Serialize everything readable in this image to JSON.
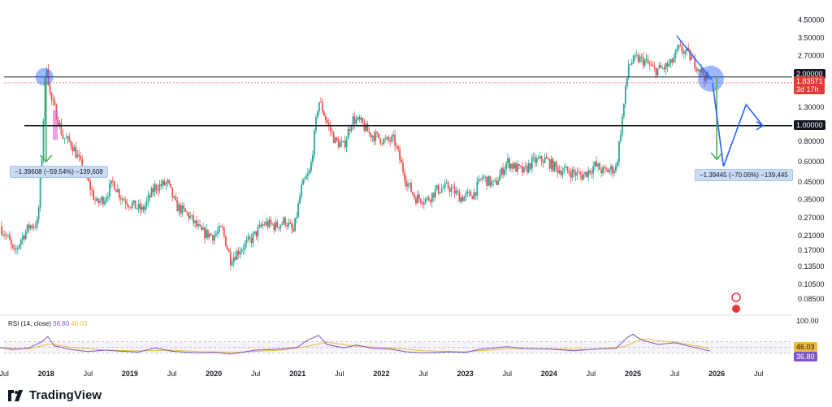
{
  "brand": {
    "name": "TradingView",
    "logo_icon": "tradingview-logo-icon"
  },
  "rsi": {
    "title": "RSI (14, close)",
    "value_rsi": "36.80",
    "value_ma": "46.03",
    "upper": "100.00",
    "rsi_color": "#7e57c2",
    "ma_color": "#f0b93a"
  },
  "price_tags": {
    "level_2": "2.00000",
    "current": "1.83571",
    "countdown": "3d 17h",
    "level_1": "1.00000"
  },
  "measure_left": "−1.39608 (−59.54%) −139,608",
  "measure_right": "−1.39445 (−70.06%) −139,445",
  "colors": {
    "up": "#26a69a",
    "down": "#ef5350",
    "projection": "#2962ff",
    "circle": "#2962ff"
  },
  "chart_data": {
    "type": "candlestick",
    "scale": "log",
    "ylim": [
      0.07,
      5.2
    ],
    "y_ticks": [
      "4.50000",
      "3.50000",
      "2.70000",
      "2.00000",
      "1.30000",
      "1.00000",
      "0.80000",
      "0.60000",
      "0.45000",
      "0.35000",
      "0.27000",
      "0.21000",
      "0.17000",
      "0.13500",
      "0.10500",
      "0.08500"
    ],
    "y_tick_values": [
      4.5,
      3.5,
      2.7,
      2.0,
      1.3,
      1.0,
      0.8,
      0.6,
      0.45,
      0.35,
      0.27,
      0.21,
      0.17,
      0.135,
      0.105,
      0.085
    ],
    "x_ticks": [
      {
        "label": "Jul",
        "t": 2017.5,
        "year": false
      },
      {
        "label": "2018",
        "t": 2018.0,
        "year": true
      },
      {
        "label": "Jul",
        "t": 2018.5,
        "year": false
      },
      {
        "label": "2019",
        "t": 2019.0,
        "year": true
      },
      {
        "label": "Jul",
        "t": 2019.5,
        "year": false
      },
      {
        "label": "2020",
        "t": 2020.0,
        "year": true
      },
      {
        "label": "Jul",
        "t": 2020.5,
        "year": false
      },
      {
        "label": "2021",
        "t": 2021.0,
        "year": true
      },
      {
        "label": "Jul",
        "t": 2021.5,
        "year": false
      },
      {
        "label": "2022",
        "t": 2022.0,
        "year": true
      },
      {
        "label": "Jul",
        "t": 2022.5,
        "year": false
      },
      {
        "label": "2023",
        "t": 2023.0,
        "year": true
      },
      {
        "label": "Jul",
        "t": 2023.5,
        "year": false
      },
      {
        "label": "2024",
        "t": 2024.0,
        "year": true
      },
      {
        "label": "Jul",
        "t": 2024.5,
        "year": false
      },
      {
        "label": "2025",
        "t": 2025.0,
        "year": true
      },
      {
        "label": "Jul",
        "t": 2025.5,
        "year": false
      },
      {
        "label": "2026",
        "t": 2026.0,
        "year": true
      },
      {
        "label": "Jul",
        "t": 2026.5,
        "year": false
      }
    ],
    "xlim": [
      2017.45,
      2026.9
    ],
    "horizontal_levels": [
      2.0,
      1.0
    ],
    "price_path": [
      [
        2017.45,
        0.24
      ],
      [
        2017.55,
        0.2
      ],
      [
        2017.62,
        0.16
      ],
      [
        2017.7,
        0.2
      ],
      [
        2017.8,
        0.24
      ],
      [
        2017.9,
        0.25
      ],
      [
        2017.95,
        0.65
      ],
      [
        2018.0,
        2.6
      ],
      [
        2018.05,
        1.5
      ],
      [
        2018.12,
        1.2
      ],
      [
        2018.2,
        0.85
      ],
      [
        2018.3,
        0.78
      ],
      [
        2018.4,
        0.6
      ],
      [
        2018.5,
        0.45
      ],
      [
        2018.6,
        0.33
      ],
      [
        2018.7,
        0.36
      ],
      [
        2018.8,
        0.45
      ],
      [
        2018.9,
        0.36
      ],
      [
        2019.0,
        0.33
      ],
      [
        2019.15,
        0.3
      ],
      [
        2019.3,
        0.42
      ],
      [
        2019.45,
        0.44
      ],
      [
        2019.55,
        0.32
      ],
      [
        2019.7,
        0.28
      ],
      [
        2019.85,
        0.22
      ],
      [
        2020.0,
        0.21
      ],
      [
        2020.1,
        0.23
      ],
      [
        2020.2,
        0.15
      ],
      [
        2020.3,
        0.17
      ],
      [
        2020.45,
        0.2
      ],
      [
        2020.6,
        0.25
      ],
      [
        2020.75,
        0.24
      ],
      [
        2020.85,
        0.26
      ],
      [
        2020.95,
        0.22
      ],
      [
        2021.05,
        0.42
      ],
      [
        2021.15,
        0.52
      ],
      [
        2021.25,
        1.45
      ],
      [
        2021.3,
        1.25
      ],
      [
        2021.35,
        1.05
      ],
      [
        2021.45,
        0.8
      ],
      [
        2021.55,
        0.75
      ],
      [
        2021.65,
        1.1
      ],
      [
        2021.75,
        1.05
      ],
      [
        2021.85,
        0.9
      ],
      [
        2021.95,
        0.85
      ],
      [
        2022.05,
        0.8
      ],
      [
        2022.15,
        0.82
      ],
      [
        2022.3,
        0.45
      ],
      [
        2022.4,
        0.36
      ],
      [
        2022.55,
        0.35
      ],
      [
        2022.65,
        0.4
      ],
      [
        2022.8,
        0.42
      ],
      [
        2022.95,
        0.36
      ],
      [
        2023.1,
        0.38
      ],
      [
        2023.2,
        0.48
      ],
      [
        2023.35,
        0.43
      ],
      [
        2023.5,
        0.6
      ],
      [
        2023.6,
        0.55
      ],
      [
        2023.7,
        0.52
      ],
      [
        2023.8,
        0.6
      ],
      [
        2023.95,
        0.62
      ],
      [
        2024.1,
        0.54
      ],
      [
        2024.25,
        0.52
      ],
      [
        2024.4,
        0.49
      ],
      [
        2024.55,
        0.57
      ],
      [
        2024.65,
        0.52
      ],
      [
        2024.8,
        0.55
      ],
      [
        2024.88,
        1.2
      ],
      [
        2024.95,
        2.4
      ],
      [
        2025.05,
        2.6
      ],
      [
        2025.15,
        2.5
      ],
      [
        2025.25,
        2.2
      ],
      [
        2025.35,
        2.25
      ],
      [
        2025.45,
        2.4
      ],
      [
        2025.55,
        3.0
      ],
      [
        2025.65,
        2.8
      ],
      [
        2025.75,
        2.4
      ],
      [
        2025.85,
        2.05
      ],
      [
        2025.92,
        1.84
      ]
    ],
    "rsi_path": [
      [
        2017.45,
        50
      ],
      [
        2017.6,
        42
      ],
      [
        2017.8,
        48
      ],
      [
        2017.95,
        70
      ],
      [
        2018.02,
        88
      ],
      [
        2018.1,
        55
      ],
      [
        2018.3,
        42
      ],
      [
        2018.5,
        35
      ],
      [
        2018.7,
        40
      ],
      [
        2018.9,
        36
      ],
      [
        2019.1,
        33
      ],
      [
        2019.3,
        48
      ],
      [
        2019.5,
        36
      ],
      [
        2019.8,
        30
      ],
      [
        2020.0,
        32
      ],
      [
        2020.2,
        26
      ],
      [
        2020.5,
        40
      ],
      [
        2020.8,
        44
      ],
      [
        2021.0,
        50
      ],
      [
        2021.1,
        72
      ],
      [
        2021.25,
        92
      ],
      [
        2021.35,
        60
      ],
      [
        2021.55,
        48
      ],
      [
        2021.7,
        58
      ],
      [
        2021.9,
        46
      ],
      [
        2022.1,
        44
      ],
      [
        2022.3,
        34
      ],
      [
        2022.5,
        30
      ],
      [
        2022.8,
        34
      ],
      [
        2023.0,
        32
      ],
      [
        2023.2,
        44
      ],
      [
        2023.5,
        52
      ],
      [
        2023.7,
        46
      ],
      [
        2024.0,
        44
      ],
      [
        2024.3,
        38
      ],
      [
        2024.55,
        44
      ],
      [
        2024.8,
        46
      ],
      [
        2024.92,
        82
      ],
      [
        2025.0,
        96
      ],
      [
        2025.1,
        76
      ],
      [
        2025.3,
        60
      ],
      [
        2025.5,
        66
      ],
      [
        2025.7,
        52
      ],
      [
        2025.92,
        36.8
      ]
    ],
    "rsi_ma_path": [
      [
        2017.45,
        48
      ],
      [
        2017.8,
        45
      ],
      [
        2018.05,
        62
      ],
      [
        2018.3,
        50
      ],
      [
        2018.7,
        40
      ],
      [
        2019.1,
        37
      ],
      [
        2019.5,
        40
      ],
      [
        2019.9,
        34
      ],
      [
        2020.3,
        33
      ],
      [
        2020.8,
        40
      ],
      [
        2021.1,
        52
      ],
      [
        2021.35,
        68
      ],
      [
        2021.7,
        54
      ],
      [
        2022.1,
        48
      ],
      [
        2022.5,
        38
      ],
      [
        2023.0,
        34
      ],
      [
        2023.5,
        45
      ],
      [
        2024.0,
        45
      ],
      [
        2024.5,
        42
      ],
      [
        2024.9,
        52
      ],
      [
        2025.1,
        80
      ],
      [
        2025.5,
        68
      ],
      [
        2025.92,
        46.03
      ]
    ],
    "projection": [
      [
        2025.95,
        1.84
      ],
      [
        2026.08,
        0.56
      ],
      [
        2026.35,
        1.35
      ],
      [
        2026.55,
        1.0
      ]
    ],
    "trend_line": [
      [
        2025.52,
        3.6
      ],
      [
        2025.95,
        1.9
      ]
    ],
    "arrows_down": [
      {
        "from": [
          2018.0,
          2.0
        ],
        "to": [
          2018.0,
          0.6
        ],
        "color": "#4caf50"
      },
      {
        "from": [
          2026.0,
          2.0
        ],
        "to": [
          2026.0,
          0.62
        ],
        "color": "#4caf50"
      }
    ],
    "circles": [
      {
        "t": 2017.98,
        "p": 2.0,
        "r": 11
      },
      {
        "t": 2025.93,
        "p": 1.95,
        "r": 16
      }
    ],
    "rsi_ylim": [
      0,
      100
    ],
    "rsi_band": [
      30,
      70
    ]
  }
}
